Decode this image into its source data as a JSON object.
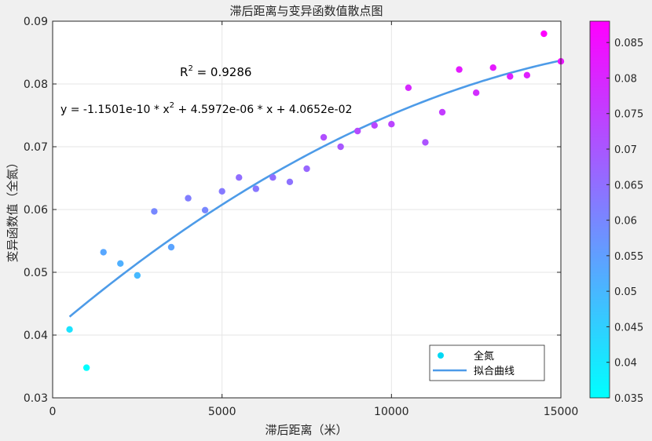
{
  "chart_data": {
    "type": "scatter",
    "title": "滞后距离与变异函数值散点图",
    "xlabel": "滞后距离（米）",
    "ylabel": "变异函数值（全氮）",
    "xlim": [
      0,
      15000
    ],
    "ylim": [
      0.03,
      0.09
    ],
    "xticks": [
      0,
      5000,
      10000,
      15000
    ],
    "xtick_labels": [
      "0",
      "5000",
      "10000",
      "15000"
    ],
    "yticks": [
      0.03,
      0.04,
      0.05,
      0.06,
      0.07,
      0.08,
      0.09
    ],
    "ytick_labels": [
      "0.03",
      "0.04",
      "0.05",
      "0.06",
      "0.07",
      "0.08",
      "0.09"
    ],
    "grid": true,
    "series": [
      {
        "name": "全氮",
        "kind": "scatter",
        "x": [
          500,
          1000,
          1500,
          2000,
          2500,
          3000,
          3500,
          4000,
          4500,
          5000,
          5500,
          6000,
          6500,
          7000,
          7500,
          8000,
          8500,
          9000,
          9500,
          10000,
          10500,
          11000,
          11500,
          12000,
          12500,
          13000,
          13500,
          14000,
          14500,
          15000
        ],
        "y": [
          0.0409,
          0.0348,
          0.0532,
          0.0514,
          0.0495,
          0.0597,
          0.054,
          0.0618,
          0.0599,
          0.0629,
          0.0651,
          0.0633,
          0.0651,
          0.0644,
          0.0665,
          0.0715,
          0.07,
          0.0725,
          0.0734,
          0.0736,
          0.0794,
          0.0707,
          0.0755,
          0.0823,
          0.0786,
          0.0826,
          0.0812,
          0.0814,
          0.088,
          0.0836
        ]
      },
      {
        "name": "拟合曲线",
        "kind": "line",
        "color": "#4d9be8",
        "coefficients": {
          "a": -1.1501e-10,
          "b": 4.5972e-06,
          "c": 0.040652
        },
        "x_range": [
          500,
          15000
        ]
      }
    ],
    "annotations": {
      "r2_base": "R",
      "r2_sup": "2",
      "r2_value": " = 0.9286",
      "equation_part1": "y = -1.1501e-10 * x",
      "equation_sup": "2",
      "equation_part2": " + 4.5972e-06 * x + 4.0652e-02"
    },
    "legend": {
      "placement": "bottom-right",
      "entries": [
        "全氮",
        "拟合曲线"
      ]
    },
    "colorbar": {
      "range": [
        0.035,
        0.088
      ],
      "ticks": [
        0.035,
        0.04,
        0.045,
        0.05,
        0.055,
        0.06,
        0.065,
        0.07,
        0.075,
        0.08,
        0.085
      ],
      "tick_labels": [
        "0.035",
        "0.04",
        "0.045",
        "0.05",
        "0.055",
        "0.06",
        "0.065",
        "0.07",
        "0.075",
        "0.08",
        "0.085"
      ],
      "colormap": "cool",
      "color_low": "#00ffff",
      "color_high": "#ff00ff"
    }
  }
}
